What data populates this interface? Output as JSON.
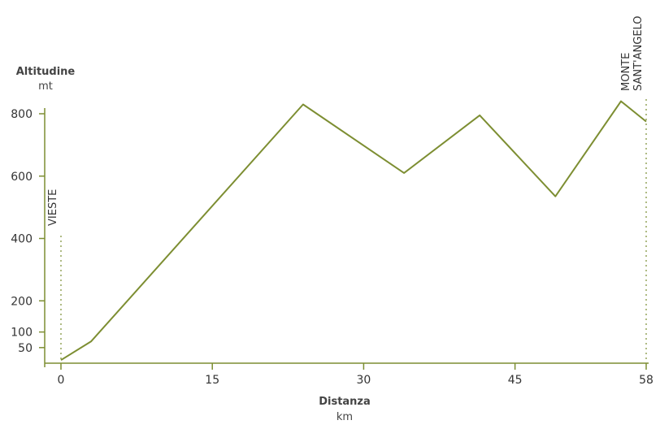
{
  "chart_data": {
    "type": "line",
    "ylabel": "Altitudine",
    "yunit": "mt",
    "xlabel": "Distanza",
    "xunit": "km",
    "xlim": [
      0,
      58
    ],
    "ylim": [
      0,
      800
    ],
    "xticks": [
      0,
      15,
      30,
      45,
      58
    ],
    "yticks": [
      50,
      100,
      200,
      400,
      600,
      800
    ],
    "series": [
      {
        "x": [
          0,
          3,
          24,
          34,
          41.5,
          49,
          55.5,
          58
        ],
        "y": [
          10,
          70,
          830,
          610,
          795,
          535,
          840,
          775
        ]
      }
    ],
    "annotations": [
      {
        "x": 0,
        "label": "VIESTE"
      },
      {
        "x": 58,
        "label": "MONTE SANT'ANGELO",
        "lines": [
          "MONTE",
          "SANT'ANGELO"
        ]
      }
    ],
    "line_color": "#7d8e32",
    "axis_color": "#7d8e32",
    "marker_color": "#93a35a"
  }
}
